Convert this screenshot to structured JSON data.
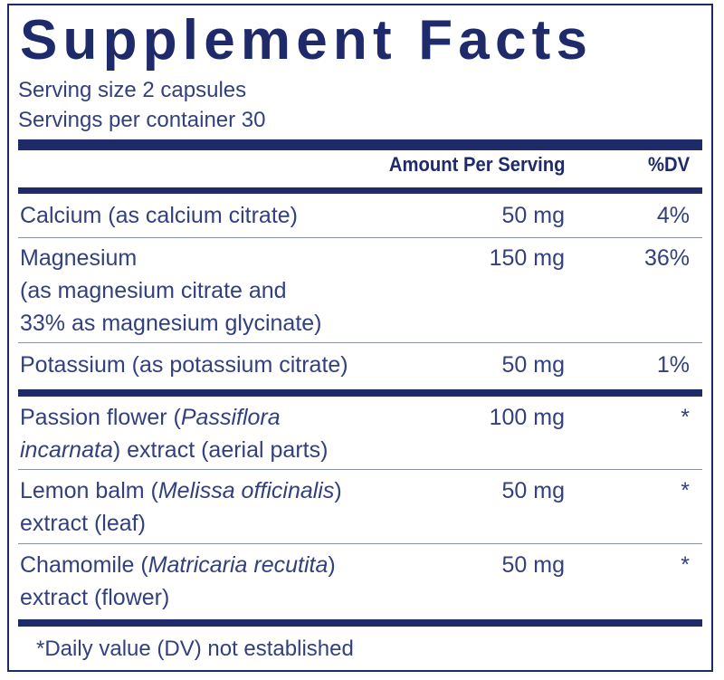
{
  "title": "Supplement Facts",
  "serving": {
    "size": "Serving size  2 capsules",
    "per_container": "Servings per container  30"
  },
  "header": {
    "amount": "Amount Per Serving",
    "dv": "%DV"
  },
  "rows": [
    {
      "lines": [
        "Calcium (as calcium citrate)"
      ],
      "amount": "50 mg",
      "dv": "4%"
    },
    {
      "lines": [
        "Magnesium",
        "(as magnesium citrate and",
        "33% as magnesium glycinate)"
      ],
      "amount": "150 mg",
      "dv": "36%"
    },
    {
      "lines": [
        "Potassium (as potassium citrate)"
      ],
      "amount": "50 mg",
      "dv": "1%"
    },
    {
      "name_pre": "Passion flower (",
      "name_latin": "Passiflora",
      "line2_latin": "incarnata",
      "line2_post": ") extract (aerial parts)",
      "amount": "100 mg",
      "dv": "*"
    },
    {
      "name_pre": "Lemon balm (",
      "name_latin": "Melissa officinalis",
      "name_post": ")",
      "line2": "extract (leaf)",
      "amount": "50 mg",
      "dv": "*"
    },
    {
      "name_pre": "Chamomile (",
      "name_latin": "Matricaria recutita",
      "name_post": ")",
      "line2": "extract (flower)",
      "amount": "50 mg",
      "dv": "*"
    }
  ],
  "footnote": "*Daily value (DV) not established",
  "colors": {
    "navy": "#1f2a6b",
    "text": "#33407e"
  }
}
